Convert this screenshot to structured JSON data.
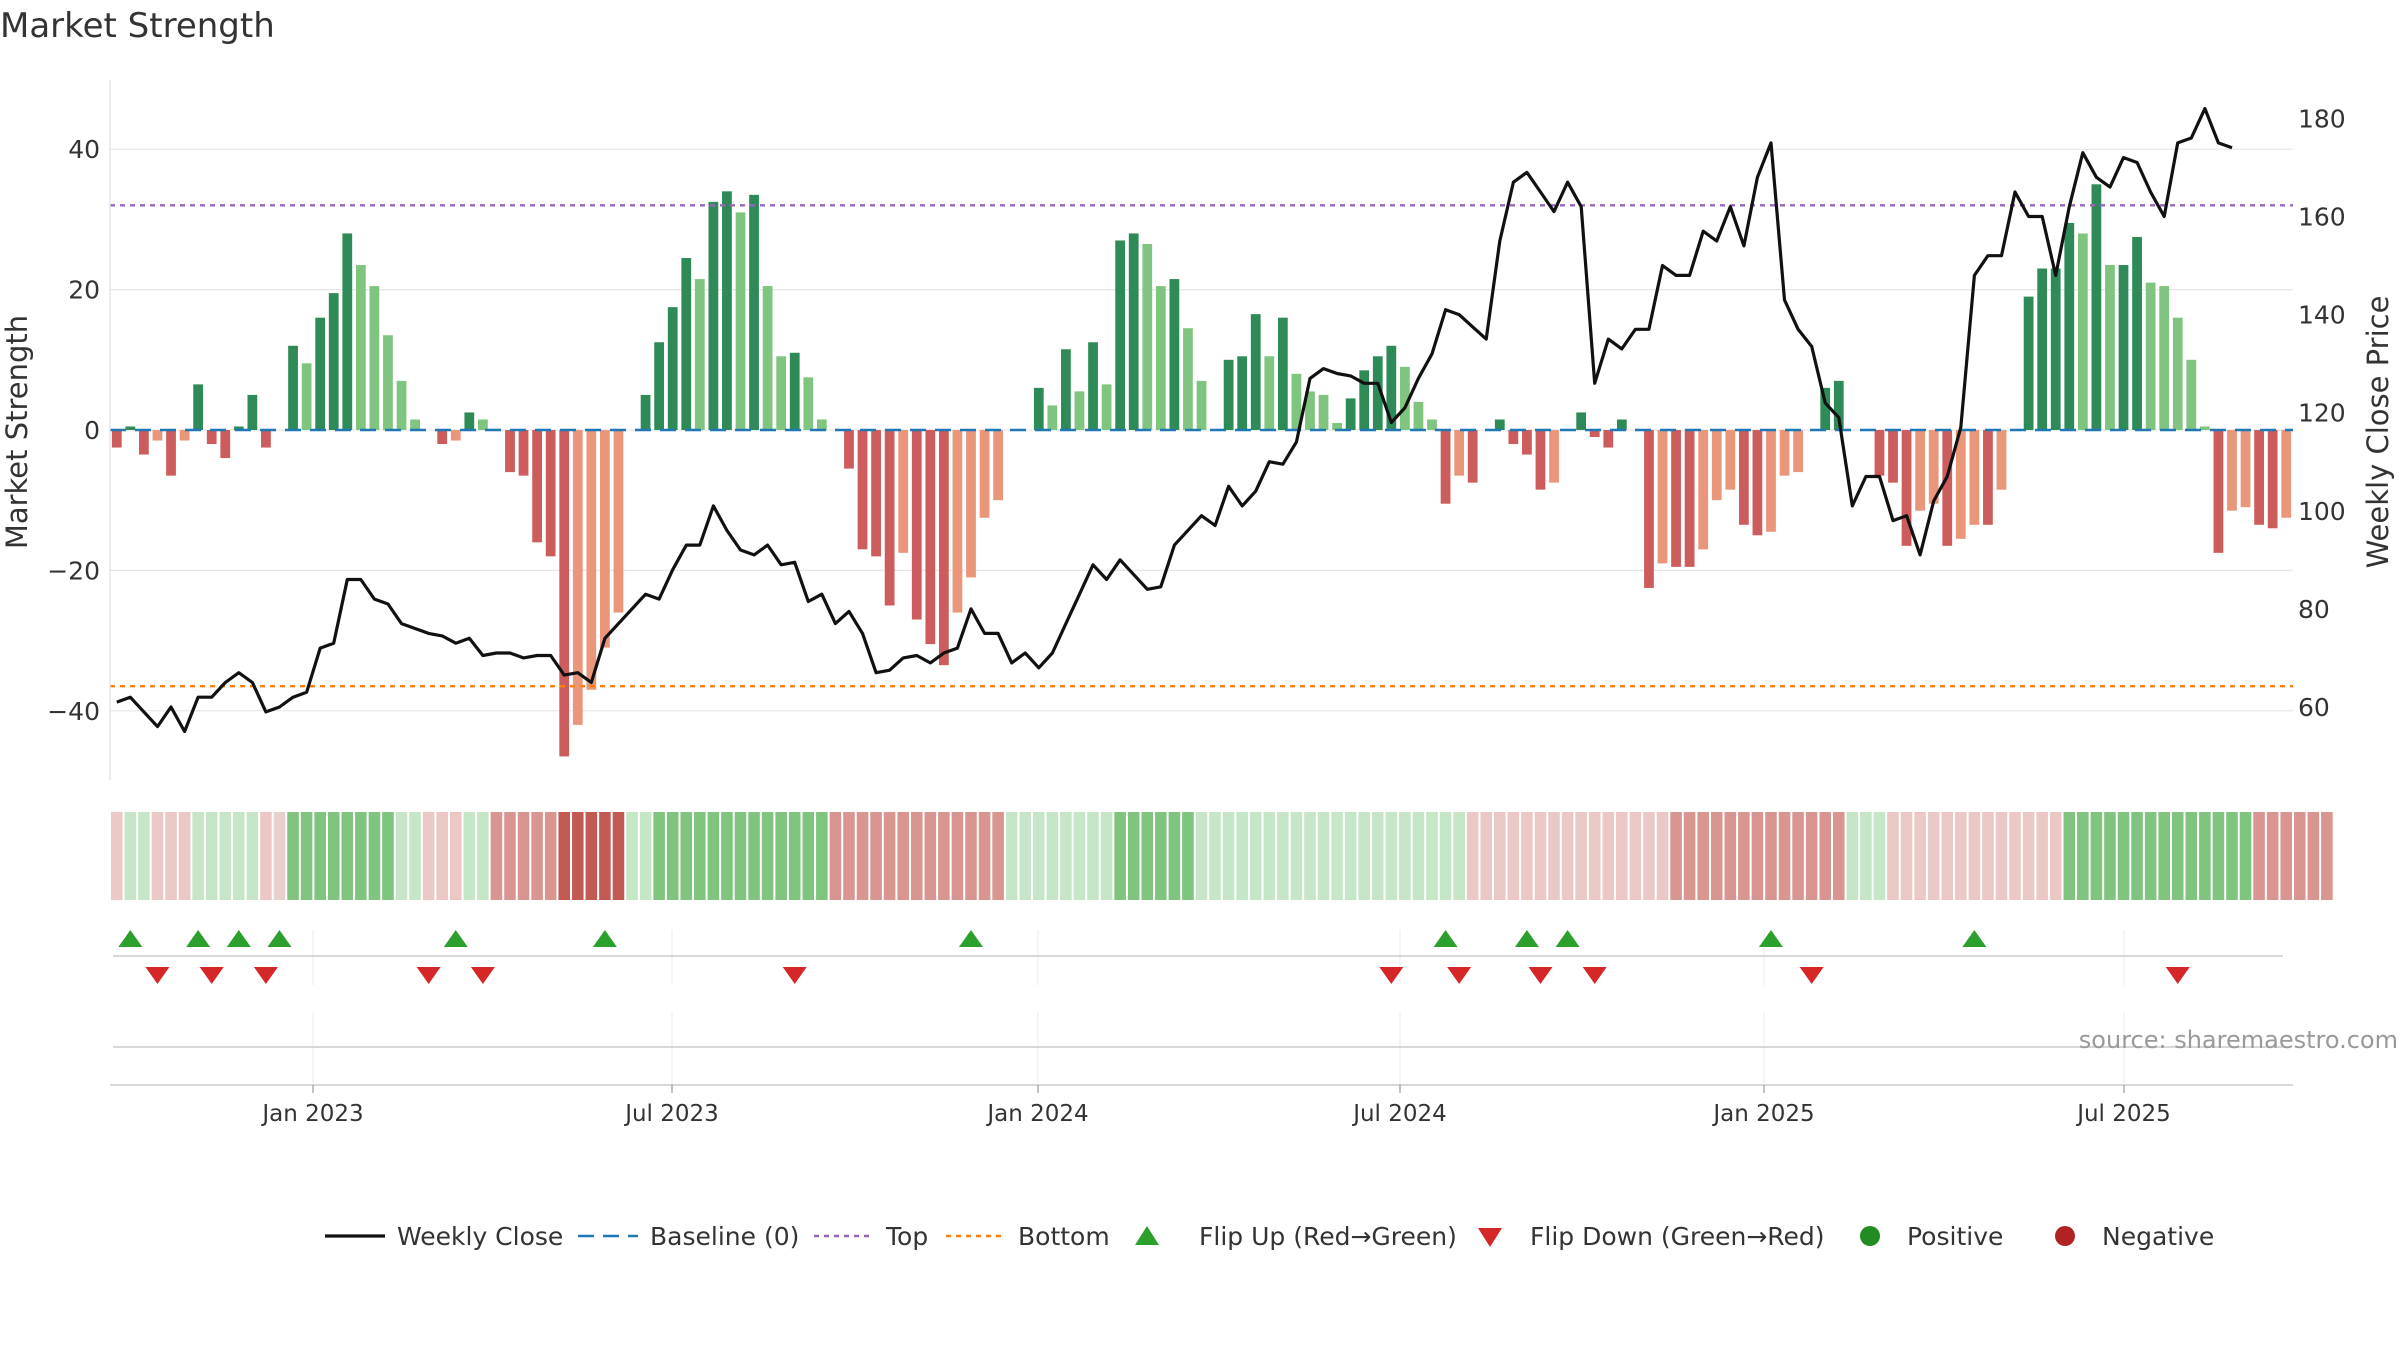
{
  "chart_data": {
    "type": "bar",
    "title": "Market Strength",
    "ylabel": "Market Strength",
    "y2label": "Weekly Close Price",
    "source": "source: sharemaestro.com",
    "ylim": [
      -50,
      50
    ],
    "y2lim": [
      45,
      185
    ],
    "yticks": [
      -40,
      -20,
      0,
      20,
      40
    ],
    "y2ticks": [
      60,
      80,
      100,
      120,
      140,
      160,
      180
    ],
    "top_line": 32,
    "bottom_line": -36.5,
    "x_ticks": [
      "Jan 2023",
      "Jul 2023",
      "Jan 2024",
      "Jul 2024",
      "Jan 2025",
      "Jul 2025"
    ],
    "colors": {
      "strong_pos": "#2e8b57",
      "weak_pos": "#7fc47f",
      "strong_neg": "#cd5c5c",
      "weak_neg": "#e9967a",
      "price": "#111111",
      "baseline": "#1f77b4",
      "top": "#9467bd",
      "bottom": "#ff7f0e",
      "flip_up": "#2ca02c",
      "flip_down": "#d62728",
      "positive": "#228b22",
      "negative": "#b22222"
    },
    "series": [
      {
        "name": "Market Strength",
        "values": [
          -2.5,
          0.5,
          -3.5,
          -1.5,
          -6.5,
          -1.5,
          6.5,
          -2,
          -4,
          0.5,
          5,
          -2.5,
          0,
          12,
          9.5,
          16,
          19.5,
          28,
          23.5,
          20.5,
          13.5,
          7,
          1.5,
          0,
          -2,
          -1.5,
          2.5,
          1.5,
          0,
          -6,
          -6.5,
          -16,
          -18,
          -46.5,
          -42,
          -37,
          -31,
          -26,
          0,
          5,
          12.5,
          17.5,
          24.5,
          21.5,
          32.5,
          34,
          31,
          33.5,
          20.5,
          10.5,
          11,
          7.5,
          1.5,
          0,
          -5.5,
          -17,
          -18,
          -25,
          -17.5,
          -27,
          -30.5,
          -33.5,
          -26,
          -21,
          -12.5,
          -10,
          0,
          0,
          6,
          3.5,
          11.5,
          5.5,
          12.5,
          6.5,
          27,
          28,
          26.5,
          20.5,
          21.5,
          14.5,
          7,
          0,
          10,
          10.5,
          16.5,
          10.5,
          16,
          8,
          5.5,
          5,
          1,
          4.5,
          8.5,
          10.5,
          12,
          9,
          4,
          1.5,
          -10.5,
          -6.5,
          -7.5,
          0,
          1.5,
          -2,
          -3.5,
          -8.5,
          -7.5,
          0,
          2.5,
          -1,
          -2.5,
          1.5,
          0,
          -22.5,
          -19,
          -19.5,
          -19.5,
          -17,
          -10,
          -8.5,
          -13.5,
          -15,
          -14.5,
          -6.5,
          -6,
          0,
          6,
          7,
          0,
          0,
          -6.5,
          -7.5,
          -16.5,
          -11.5,
          -10.5,
          -16.5,
          -15.5,
          -13.5,
          -13.5,
          -8.5,
          0,
          19,
          23,
          23,
          29.5,
          28,
          35,
          23.5,
          23.5,
          27.5,
          21,
          20.5,
          16,
          10,
          0.5,
          -17.5,
          -11.5,
          -11,
          -13.5,
          -14,
          -12.5
        ]
      },
      {
        "name": "Weekly Close",
        "values": [
          61,
          62,
          59,
          56,
          60,
          55,
          62,
          62,
          65,
          67,
          65,
          59,
          60,
          62,
          63,
          72,
          73,
          86,
          86,
          82,
          81,
          77,
          76,
          75,
          74.5,
          73,
          74,
          70.5,
          71,
          71,
          70,
          70.5,
          70.5,
          66.5,
          67,
          65,
          74,
          77,
          80,
          83,
          82,
          88,
          93,
          93,
          101,
          96,
          92,
          91,
          93,
          89,
          89.5,
          81.5,
          83,
          77,
          79.5,
          75,
          67,
          67.5,
          70,
          70.5,
          69,
          71,
          72,
          80,
          75,
          75,
          69,
          71,
          68,
          71,
          77,
          83,
          89,
          86,
          90,
          87,
          84,
          84.5,
          93,
          96,
          99,
          97,
          105,
          101,
          104,
          110,
          109.5,
          114,
          127,
          129,
          128,
          127.5,
          126,
          126,
          118,
          121,
          127,
          132,
          141,
          140,
          137.5,
          135,
          155,
          167,
          169,
          165,
          161,
          167,
          162,
          126,
          135,
          133,
          137,
          137,
          150,
          148,
          148,
          157,
          155,
          162,
          154,
          168,
          175,
          143,
          137,
          133.5,
          122,
          119,
          101,
          107,
          107,
          98,
          99,
          91,
          102,
          107,
          117,
          148,
          152,
          152,
          165,
          160,
          160,
          148,
          162,
          173,
          168,
          166,
          172,
          171,
          165,
          160,
          175,
          176,
          182,
          175,
          174
        ]
      }
    ],
    "heat_band": [
      -1,
      1,
      1,
      -1,
      -1,
      -1,
      1,
      1,
      1,
      1,
      1,
      -1,
      0,
      2,
      2,
      2,
      2,
      2,
      2,
      2,
      2,
      1,
      1,
      -1,
      -1,
      -1,
      1,
      1,
      -2,
      -2,
      -2,
      -2,
      -2,
      -3,
      -3,
      -3,
      -3,
      -3,
      1,
      1,
      2,
      2,
      2,
      2,
      2,
      2,
      2,
      2,
      2,
      2,
      2,
      2,
      2,
      -2,
      -2,
      -2,
      -2,
      -2,
      -2,
      -2,
      -2,
      -2,
      -2,
      -2,
      -2,
      -2,
      1,
      1,
      1,
      1,
      1,
      1,
      1,
      1,
      2,
      2,
      2,
      2,
      2,
      2,
      1,
      1,
      1,
      1,
      1,
      1,
      1,
      1,
      1,
      1,
      1,
      1,
      1,
      1,
      1,
      1,
      1,
      1,
      1,
      1,
      -1,
      -1,
      -1,
      -1,
      -1,
      -1,
      -1,
      -1,
      -1,
      -1,
      -1,
      -1,
      -1,
      -1,
      -1,
      -2,
      -2,
      -2,
      -2,
      -2,
      -2,
      -2,
      -2,
      -2,
      -2,
      -2,
      -2,
      -2,
      1,
      1,
      1,
      -1,
      -1,
      -1,
      -1,
      -1,
      -1,
      -1,
      -1,
      -1,
      -1,
      -1,
      -1,
      -1,
      2,
      2,
      2,
      2,
      2,
      2,
      2,
      2,
      2,
      2,
      2,
      2,
      2,
      2,
      -2,
      -2,
      -2,
      -2,
      -2,
      -2
    ],
    "flip_up_weeks": [
      1,
      6,
      9,
      12,
      25,
      36,
      63,
      98,
      104,
      107,
      122,
      137
    ],
    "flip_down_weeks": [
      3,
      7,
      11,
      23,
      27,
      50,
      94,
      99,
      105,
      109,
      125,
      152
    ],
    "legend": [
      {
        "label": "Weekly Close",
        "kind": "line",
        "color": "#111111"
      },
      {
        "label": "Baseline (0)",
        "kind": "dash",
        "color": "#1f77b4"
      },
      {
        "label": "Top",
        "kind": "dot",
        "color": "#9467bd"
      },
      {
        "label": "Bottom",
        "kind": "dot",
        "color": "#ff7f0e"
      },
      {
        "label": "Flip Up (Red→Green)",
        "kind": "tri-up",
        "color": "#2ca02c"
      },
      {
        "label": "Flip Down (Green→Red)",
        "kind": "tri-down",
        "color": "#d62728"
      },
      {
        "label": "Positive",
        "kind": "circle",
        "color": "#228b22"
      },
      {
        "label": "Negative",
        "kind": "circle",
        "color": "#b22222"
      }
    ]
  }
}
